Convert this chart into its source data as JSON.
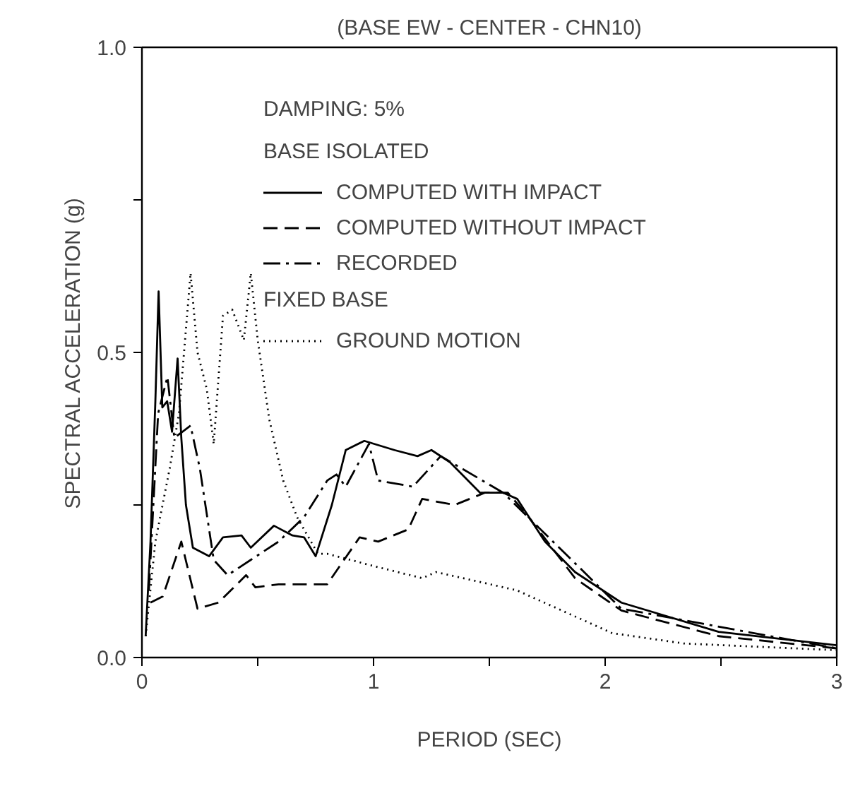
{
  "chart_data": {
    "type": "line",
    "title": "(BASE EW - CENTER - CHN10)",
    "xlabel": "PERIOD (SEC)",
    "ylabel": "SPECTRAL ACCELERATION (g)",
    "annotations": [
      "DAMPING: 5%",
      "BASE ISOLATED",
      "FIXED BASE"
    ],
    "xlim": [
      0,
      3
    ],
    "ylim": [
      0,
      1.0
    ],
    "xticks": [
      0,
      {
        "value": 0.5,
        "label": null
      },
      1,
      {
        "value": 1.5,
        "label": null
      },
      2,
      {
        "value": 2.5,
        "label": null
      },
      3
    ],
    "yticks": [
      {
        "value": 0,
        "label": "0.0"
      },
      {
        "value": 0.25,
        "label": null
      },
      {
        "value": 0.5,
        "label": "0.5"
      },
      {
        "value": 0.75,
        "label": null
      },
      {
        "value": 1.0,
        "label": "1.0"
      }
    ],
    "grid": false,
    "legend": "top",
    "marker": "none",
    "series": [
      {
        "name": "COMPUTED WITH IMPACT",
        "color": "#000000",
        "line_style": "solid",
        "x": [
          0.016,
          0.037,
          0.058,
          0.072,
          0.088,
          0.109,
          0.13,
          0.154,
          0.17,
          0.19,
          0.22,
          0.29,
          0.35,
          0.43,
          0.47,
          0.57,
          0.65,
          0.7,
          0.75,
          0.82,
          0.88,
          0.96,
          1.09,
          1.19,
          1.25,
          1.33,
          1.46,
          1.56,
          1.62,
          1.74,
          1.87,
          2.07,
          2.49,
          3.0
        ],
        "values": [
          0.035,
          0.19,
          0.42,
          0.6,
          0.41,
          0.42,
          0.37,
          0.49,
          0.36,
          0.25,
          0.18,
          0.166,
          0.197,
          0.2,
          0.18,
          0.216,
          0.2,
          0.197,
          0.166,
          0.25,
          0.34,
          0.355,
          0.34,
          0.33,
          0.34,
          0.32,
          0.27,
          0.27,
          0.26,
          0.19,
          0.14,
          0.09,
          0.042,
          0.02
        ]
      },
      {
        "name": "COMPUTED WITHOUT IMPACT",
        "color": "#000000",
        "line_style": "dashed",
        "x": [
          0.037,
          0.09,
          0.17,
          0.24,
          0.33,
          0.45,
          0.49,
          0.59,
          0.8,
          0.94,
          1.02,
          1.15,
          1.21,
          1.35,
          1.48,
          1.58,
          1.66,
          1.87,
          2.07,
          2.49,
          3.0
        ],
        "values": [
          0.09,
          0.1,
          0.19,
          0.08,
          0.09,
          0.135,
          0.115,
          0.12,
          0.12,
          0.197,
          0.19,
          0.21,
          0.26,
          0.25,
          0.27,
          0.27,
          0.235,
          0.13,
          0.077,
          0.035,
          0.015
        ]
      },
      {
        "name": "RECORDED",
        "color": "#000000",
        "line_style": "dashdot",
        "x": [
          0.03,
          0.07,
          0.11,
          0.14,
          0.21,
          0.25,
          0.31,
          0.37,
          0.47,
          0.59,
          0.7,
          0.8,
          0.84,
          0.88,
          0.98,
          1.02,
          1.17,
          1.29,
          1.56,
          2.07,
          3.0
        ],
        "values": [
          0.11,
          0.4,
          0.46,
          0.36,
          0.38,
          0.31,
          0.16,
          0.135,
          0.16,
          0.19,
          0.23,
          0.29,
          0.3,
          0.28,
          0.35,
          0.29,
          0.28,
          0.33,
          0.27,
          0.08,
          0.015
        ]
      },
      {
        "name": "GROUND MOTION",
        "color": "#000000",
        "line_style": "dotted",
        "x": [
          0.016,
          0.058,
          0.12,
          0.16,
          0.21,
          0.24,
          0.28,
          0.31,
          0.35,
          0.39,
          0.44,
          0.47,
          0.5,
          0.55,
          0.61,
          0.67,
          0.76,
          0.8,
          1.0,
          1.21,
          1.27,
          1.62,
          2.03,
          2.34,
          3.0
        ],
        "values": [
          0.035,
          0.19,
          0.31,
          0.4,
          0.63,
          0.5,
          0.44,
          0.35,
          0.56,
          0.57,
          0.52,
          0.63,
          0.52,
          0.39,
          0.29,
          0.23,
          0.17,
          0.17,
          0.15,
          0.13,
          0.14,
          0.11,
          0.04,
          0.023,
          0.012
        ]
      }
    ]
  }
}
